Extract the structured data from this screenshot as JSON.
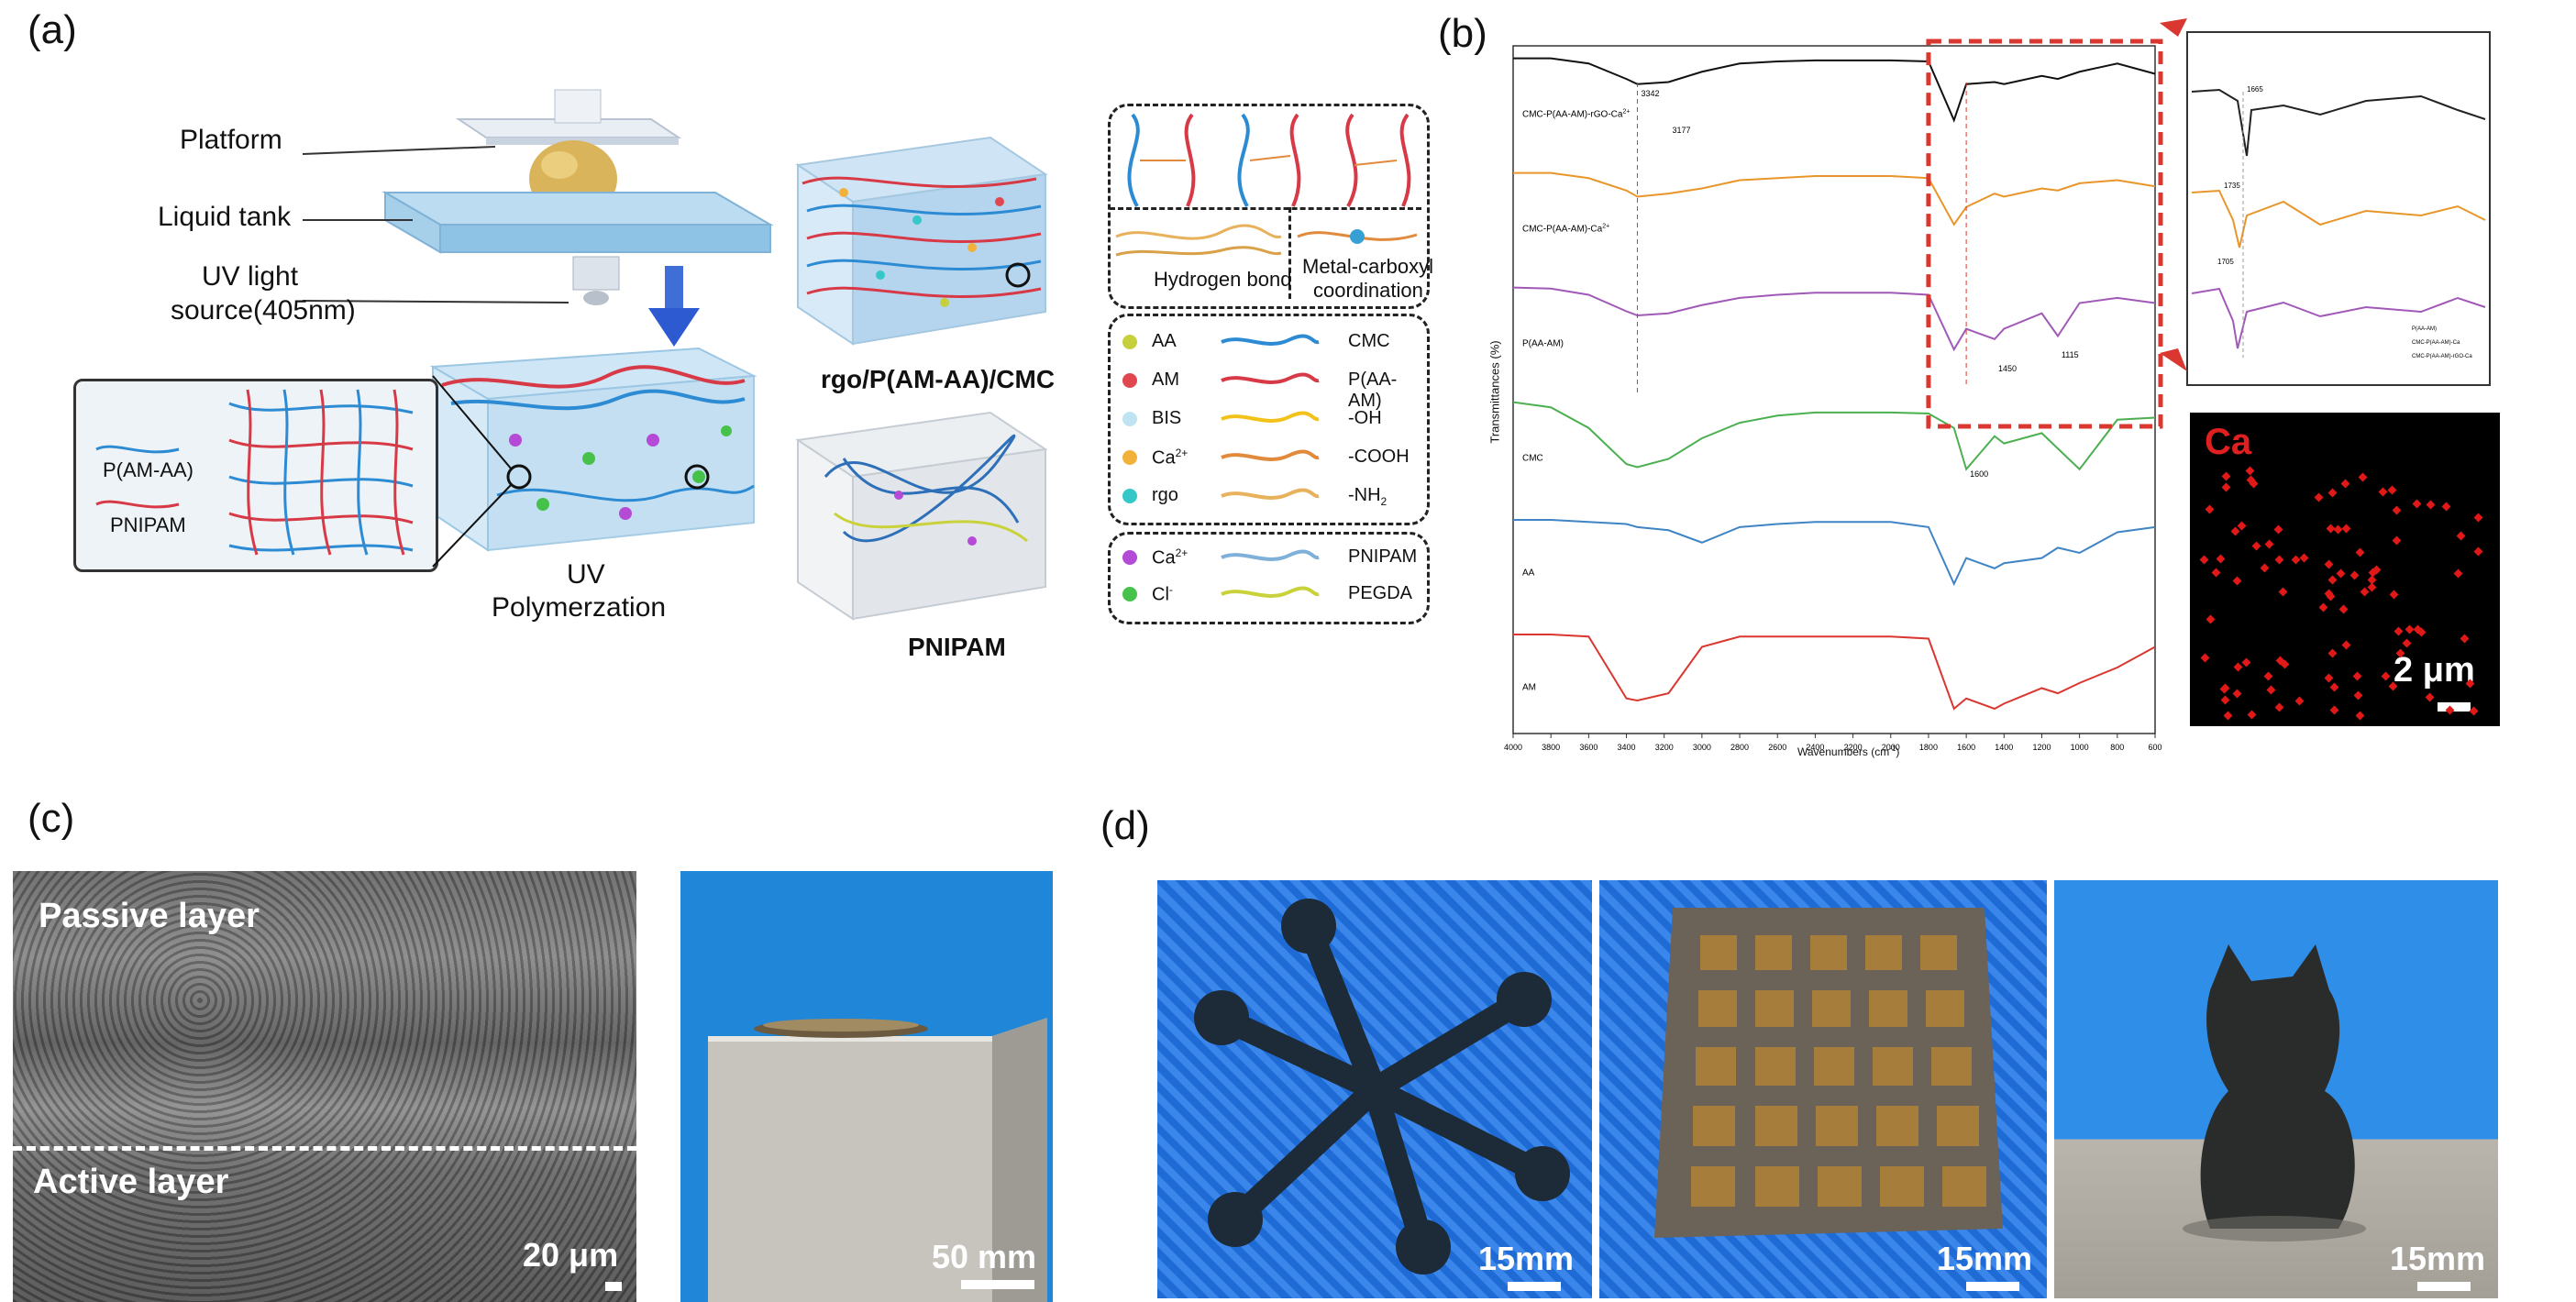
{
  "panels": {
    "a": {
      "label": "(a)",
      "parts": {
        "platform": "Platform",
        "liquid_tank": "Liquid tank",
        "uv_line1": "UV light",
        "uv_line2": "source(405nm)"
      },
      "uv_line1": "UV",
      "uv_line2": "Polymerzation",
      "inset_legend": [
        "P(AM-AA)",
        "PNIPAM"
      ],
      "gel_rgo": "rgo/P(AM-AA)/CMC",
      "gel_pnipam": "PNIPAM",
      "bond_labels": {
        "hydrogen": "Hydrogen bond",
        "metal_1": "Metal-carboxyl",
        "metal_2": "coordination"
      },
      "legend_main": [
        {
          "left": "AA",
          "right": "CMC",
          "dot": "#c6cf3c",
          "line": "#2d8bd4"
        },
        {
          "left": "AM",
          "right": "P(AA-AM)",
          "dot": "#e0474f",
          "line": "#d73a46"
        },
        {
          "left": "BIS",
          "right": "-OH",
          "dot": "#bfe3f2",
          "line": "#f2c21a"
        },
        {
          "left": "Ca",
          "left_sup": "2+",
          "right": "-COOH",
          "dot": "#f2b23a",
          "line": "#e28a3c"
        },
        {
          "left": "rgo",
          "right": "-NH",
          "right_sub": "2",
          "dot": "#36c7c9",
          "line": "#e8b25c"
        }
      ],
      "legend_small": [
        {
          "left": "Ca",
          "left_sup": "2+",
          "right": "PNIPAM",
          "dot": "#b44ad6",
          "line": "#7fb0d9"
        },
        {
          "left": "Cl",
          "left_sup": "-",
          "right": "PEGDA",
          "dot": "#46c24a",
          "line": "#c9d23a"
        }
      ]
    },
    "b": {
      "label": "(b)",
      "ylabel": "Transmittances (%)",
      "xlabel": "Wavenumbers (cm",
      "xlabel_sup": "-1",
      "xlabel_end": ")",
      "xticks": [
        "4000",
        "3800",
        "3600",
        "3400",
        "3200",
        "3000",
        "2800",
        "2600",
        "2400",
        "2200",
        "2000",
        "1800",
        "1600",
        "1400",
        "1200",
        "1000",
        "800",
        "600"
      ],
      "annotations": {
        "a3342": "3342",
        "a3177": "3177",
        "a1450": "1450",
        "a1115": "1115",
        "a1600": "1600"
      },
      "series_labels": [
        "CMC-P(AA-AM)-rGO-Ca",
        "CMC-P(AA-AM)-Ca",
        "P(AA-AM)",
        "CMC",
        "AA",
        "AM"
      ],
      "series_label_sup": "2+",
      "inset_annotations": {
        "a1665": "1665",
        "a1735": "1735",
        "a1705": "1705"
      },
      "inset_legend": [
        "P(AA-AM)",
        "CMC-P(AA-AM)-Ca",
        "CMC-P(AA-AM)-rGO-Ca"
      ],
      "eds_label": "Ca",
      "eds_scale": "2 μm"
    },
    "c": {
      "label": "(c)",
      "passive": "Passive layer",
      "active": "Active layer",
      "scale1": "20 μm",
      "scale2": "50 mm"
    },
    "d": {
      "label": "(d)",
      "scales": [
        "15mm",
        "15mm",
        "15mm"
      ]
    }
  },
  "colors": {
    "black": "#111111",
    "orange": "#e8962a",
    "purple": "#a159b8",
    "green": "#4caf50",
    "blue": "#3f84c4",
    "red": "#d9372f"
  },
  "chart_data": {
    "type": "line",
    "title": "",
    "xlabel": "Wavenumbers (cm-1)",
    "ylabel": "Transmittances (%)",
    "xlim": [
      4000,
      600
    ],
    "x": [
      4000,
      3800,
      3600,
      3400,
      3342,
      3177,
      3000,
      2800,
      2600,
      2400,
      2200,
      2000,
      1800,
      1665,
      1600,
      1450,
      1400,
      1200,
      1115,
      1000,
      800,
      600
    ],
    "series": [
      {
        "name": "CMC-P(AA-AM)-rGO-Ca2+",
        "values": [
          0.95,
          0.95,
          0.9,
          0.75,
          0.7,
          0.72,
          0.82,
          0.9,
          0.92,
          0.93,
          0.93,
          0.93,
          0.92,
          0.35,
          0.7,
          0.72,
          0.7,
          0.78,
          0.75,
          0.82,
          0.9,
          0.8
        ]
      },
      {
        "name": "CMC-P(AA-AM)-Ca2+",
        "values": [
          0.95,
          0.95,
          0.9,
          0.78,
          0.72,
          0.75,
          0.8,
          0.88,
          0.9,
          0.92,
          0.92,
          0.92,
          0.9,
          0.45,
          0.62,
          0.75,
          0.72,
          0.8,
          0.78,
          0.85,
          0.88,
          0.82
        ]
      },
      {
        "name": "P(AA-AM)",
        "values": [
          0.95,
          0.94,
          0.88,
          0.72,
          0.68,
          0.7,
          0.78,
          0.85,
          0.88,
          0.9,
          0.9,
          0.9,
          0.88,
          0.35,
          0.55,
          0.45,
          0.55,
          0.7,
          0.48,
          0.8,
          0.85,
          0.8
        ]
      },
      {
        "name": "CMC",
        "values": [
          0.95,
          0.9,
          0.7,
          0.35,
          0.32,
          0.4,
          0.6,
          0.75,
          0.82,
          0.85,
          0.85,
          0.85,
          0.84,
          0.7,
          0.3,
          0.62,
          0.55,
          0.65,
          0.5,
          0.3,
          0.78,
          0.8
        ]
      },
      {
        "name": "AA",
        "values": [
          0.92,
          0.92,
          0.9,
          0.88,
          0.85,
          0.82,
          0.7,
          0.85,
          0.88,
          0.9,
          0.9,
          0.9,
          0.85,
          0.3,
          0.55,
          0.45,
          0.5,
          0.55,
          0.65,
          0.6,
          0.8,
          0.85
        ]
      },
      {
        "name": "AM",
        "values": [
          0.92,
          0.92,
          0.9,
          0.3,
          0.28,
          0.35,
          0.8,
          0.9,
          0.9,
          0.9,
          0.9,
          0.9,
          0.88,
          0.2,
          0.3,
          0.2,
          0.25,
          0.4,
          0.35,
          0.45,
          0.6,
          0.8
        ]
      }
    ],
    "ylim": [
      0,
      1
    ],
    "grid": false,
    "legend": "left"
  }
}
